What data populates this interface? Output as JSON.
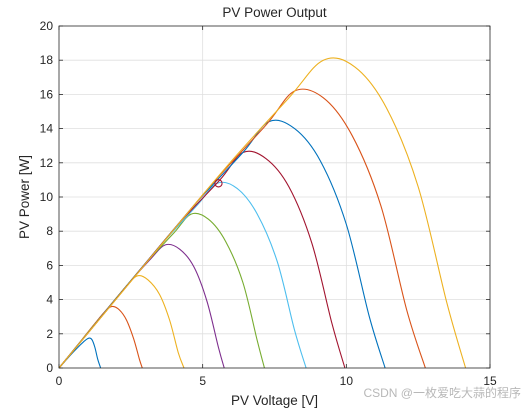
{
  "chart_data": {
    "type": "line",
    "title": "PV Power Output",
    "xlabel": "PV Voltage [V]",
    "ylabel": "PV Power [W]",
    "xlim": [
      0,
      15
    ],
    "ylim": [
      0,
      20
    ],
    "xticks": [
      0,
      5,
      10,
      15
    ],
    "yticks": [
      0,
      2,
      4,
      6,
      8,
      10,
      12,
      14,
      16,
      18,
      20
    ],
    "grid": true,
    "series": [
      {
        "color": "#0072BD",
        "x": [
          0,
          0.2,
          0.45,
          0.7,
          0.9,
          1.05,
          1.15,
          1.25,
          1.35,
          1.45
        ],
        "y": [
          0,
          0.38,
          0.85,
          1.28,
          1.6,
          1.75,
          1.65,
          1.2,
          0.5,
          0
        ]
      },
      {
        "color": "#D95319",
        "x": [
          0,
          0.4,
          0.8,
          1.2,
          1.6,
          1.85,
          2.1,
          2.35,
          2.6,
          2.8,
          2.9
        ],
        "y": [
          0,
          0.8,
          1.65,
          2.5,
          3.3,
          3.6,
          3.4,
          2.8,
          1.7,
          0.5,
          0
        ]
      },
      {
        "color": "#EDB120",
        "x": [
          0,
          0.6,
          1.2,
          1.8,
          2.4,
          2.75,
          3.1,
          3.5,
          3.85,
          4.15,
          4.35
        ],
        "y": [
          0,
          1.25,
          2.5,
          3.7,
          4.9,
          5.4,
          5.15,
          4.3,
          2.8,
          0.9,
          0
        ]
      },
      {
        "color": "#7E2F8E",
        "x": [
          0,
          0.8,
          1.6,
          2.4,
          3.2,
          3.7,
          4.2,
          4.7,
          5.15,
          5.55,
          5.75
        ],
        "y": [
          0,
          1.65,
          3.3,
          4.9,
          6.4,
          7.2,
          6.95,
          5.9,
          3.9,
          1.2,
          0
        ]
      },
      {
        "color": "#77AC30",
        "x": [
          0,
          1.0,
          2.0,
          3.0,
          4.0,
          4.6,
          5.2,
          5.8,
          6.4,
          6.9,
          7.15
        ],
        "y": [
          0,
          2.05,
          4.1,
          6.1,
          7.9,
          9.0,
          8.7,
          7.4,
          5.0,
          1.6,
          0
        ]
      },
      {
        "color": "#4DBEEE",
        "x": [
          0,
          1.2,
          2.4,
          3.6,
          4.8,
          5.5,
          6.2,
          6.9,
          7.6,
          8.2,
          8.6
        ],
        "y": [
          0,
          2.45,
          4.9,
          7.3,
          9.5,
          10.8,
          10.5,
          9.0,
          6.2,
          2.2,
          0
        ]
      },
      {
        "color": "#A2142F",
        "x": [
          0,
          1.4,
          2.8,
          4.2,
          5.6,
          6.4,
          7.2,
          8.0,
          8.8,
          9.5,
          9.95
        ],
        "y": [
          0,
          2.85,
          5.7,
          8.5,
          11.0,
          12.6,
          12.25,
          10.6,
          7.3,
          2.6,
          0
        ]
      },
      {
        "color": "#0072BD",
        "x": [
          0,
          1.6,
          3.2,
          4.8,
          6.4,
          7.3,
          8.2,
          9.1,
          10.0,
          10.8,
          11.35
        ],
        "y": [
          0,
          3.25,
          6.5,
          9.7,
          12.6,
          14.4,
          14.0,
          12.1,
          8.4,
          3.0,
          0
        ]
      },
      {
        "color": "#D95319",
        "x": [
          0,
          1.8,
          3.6,
          5.4,
          7.2,
          8.2,
          9.2,
          10.2,
          11.2,
          12.1,
          12.75
        ],
        "y": [
          0,
          3.65,
          7.3,
          10.9,
          14.2,
          16.2,
          15.8,
          13.6,
          9.5,
          3.4,
          0
        ]
      },
      {
        "color": "#EDB120",
        "x": [
          0,
          2.0,
          4.0,
          6.0,
          8.0,
          9.2,
          10.3,
          11.4,
          12.5,
          13.5,
          14.15
        ],
        "y": [
          0,
          4.05,
          8.1,
          12.1,
          15.8,
          18.0,
          17.6,
          15.2,
          10.6,
          3.8,
          0
        ]
      }
    ],
    "marker": {
      "x": 5.55,
      "y": 10.8,
      "color": "#A2142F",
      "shape": "circle"
    }
  },
  "watermark": "CSDN @一枚爱吃大蒜的程序"
}
